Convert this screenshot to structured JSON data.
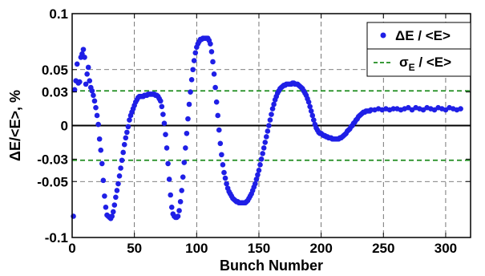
{
  "chart_data": {
    "type": "scatter",
    "title": "",
    "xlabel": "Bunch Number",
    "ylabel": "ΔE/<E>, %",
    "xlim": [
      0,
      320
    ],
    "ylim": [
      -0.1,
      0.1
    ],
    "x_ticks": [
      0,
      50,
      100,
      150,
      200,
      250,
      300
    ],
    "y_ticks": [
      0.1,
      0.05,
      0.03,
      0,
      -0.03,
      -0.05,
      -0.1
    ],
    "y_tick_labels": [
      "0.1",
      "0.05",
      "0.03",
      "0",
      "-0.03",
      "-0.05",
      "-0.1"
    ],
    "grid": true,
    "legend_position": "top-right",
    "colors": {
      "series": "#1f1fe6",
      "sigma": "#1e8c1e",
      "zero_line": "#000000"
    },
    "reference_lines": [
      {
        "name": "zero",
        "y": 0
      },
      {
        "name": "sigma_plus",
        "y": 0.031
      },
      {
        "name": "sigma_minus",
        "y": -0.031
      }
    ],
    "series": [
      {
        "name": "ΔE / <E>",
        "points": [
          [
            1,
            -0.081
          ],
          [
            2,
            0.032
          ],
          [
            3,
            0.04
          ],
          [
            4,
            0.055
          ],
          [
            5,
            0.038
          ],
          [
            6,
            0.039
          ],
          [
            7,
            0.061
          ],
          [
            8,
            0.064
          ],
          [
            9,
            0.068
          ],
          [
            10,
            0.061
          ],
          [
            11,
            0.037
          ],
          [
            12,
            0.046
          ],
          [
            13,
            0.052
          ],
          [
            14,
            0.04
          ],
          [
            15,
            0.034
          ],
          [
            16,
            0.031
          ],
          [
            17,
            0.027
          ],
          [
            18,
            0.022
          ],
          [
            19,
            0.016
          ],
          [
            20,
            0.009
          ],
          [
            21,
            0.001
          ],
          [
            22,
            -0.012
          ],
          [
            23,
            -0.022
          ],
          [
            24,
            -0.034
          ],
          [
            25,
            -0.049
          ],
          [
            26,
            -0.063
          ],
          [
            27,
            -0.073
          ],
          [
            28,
            -0.08
          ],
          [
            29,
            -0.081
          ],
          [
            30,
            -0.082
          ],
          [
            31,
            -0.083
          ],
          [
            32,
            -0.081
          ],
          [
            33,
            -0.077
          ],
          [
            34,
            -0.071
          ],
          [
            35,
            -0.064
          ],
          [
            36,
            -0.058
          ],
          [
            37,
            -0.052
          ],
          [
            38,
            -0.045
          ],
          [
            39,
            -0.038
          ],
          [
            40,
            -0.031
          ],
          [
            41,
            -0.024
          ],
          [
            42,
            -0.017
          ],
          [
            43,
            -0.011
          ],
          [
            44,
            -0.006
          ],
          [
            45,
            -0.001
          ],
          [
            46,
            0.005
          ],
          [
            47,
            0.009
          ],
          [
            48,
            0.012
          ],
          [
            49,
            0.015
          ],
          [
            50,
            0.018
          ],
          [
            51,
            0.021
          ],
          [
            52,
            0.023
          ],
          [
            53,
            0.025
          ],
          [
            54,
            0.026
          ],
          [
            55,
            0.026
          ],
          [
            56,
            0.026
          ],
          [
            57,
            0.026
          ],
          [
            58,
            0.027
          ],
          [
            59,
            0.027
          ],
          [
            60,
            0.027
          ],
          [
            61,
            0.028
          ],
          [
            62,
            0.028
          ],
          [
            63,
            0.028
          ],
          [
            64,
            0.028
          ],
          [
            65,
            0.028
          ],
          [
            66,
            0.028
          ],
          [
            67,
            0.027
          ],
          [
            68,
            0.027
          ],
          [
            69,
            0.026
          ],
          [
            70,
            0.024
          ],
          [
            71,
            0.022
          ],
          [
            72,
            0.017
          ],
          [
            73,
            0.01
          ],
          [
            74,
            0.002
          ],
          [
            75,
            -0.008
          ],
          [
            76,
            -0.02
          ],
          [
            77,
            -0.034
          ],
          [
            78,
            -0.048
          ],
          [
            79,
            -0.062
          ],
          [
            80,
            -0.073
          ],
          [
            81,
            -0.079
          ],
          [
            82,
            -0.081
          ],
          [
            83,
            -0.082
          ],
          [
            84,
            -0.082
          ],
          [
            85,
            -0.081
          ],
          [
            86,
            -0.076
          ],
          [
            87,
            -0.068
          ],
          [
            88,
            -0.058
          ],
          [
            89,
            -0.046
          ],
          [
            90,
            -0.033
          ],
          [
            91,
            -0.02
          ],
          [
            92,
            -0.007
          ],
          [
            93,
            0.006
          ],
          [
            94,
            0.019
          ],
          [
            95,
            0.03
          ],
          [
            96,
            0.041
          ],
          [
            97,
            0.05
          ],
          [
            98,
            0.058
          ],
          [
            99,
            0.065
          ],
          [
            100,
            0.07
          ],
          [
            101,
            0.073
          ],
          [
            102,
            0.075
          ],
          [
            103,
            0.077
          ],
          [
            104,
            0.077
          ],
          [
            105,
            0.078
          ],
          [
            106,
            0.078
          ],
          [
            107,
            0.078
          ],
          [
            108,
            0.078
          ],
          [
            109,
            0.078
          ],
          [
            110,
            0.076
          ],
          [
            111,
            0.073
          ],
          [
            112,
            0.066
          ],
          [
            113,
            0.057
          ],
          [
            114,
            0.046
          ],
          [
            115,
            0.034
          ],
          [
            116,
            0.021
          ],
          [
            117,
            0.009
          ],
          [
            118,
            -0.004
          ],
          [
            119,
            -0.016
          ],
          [
            120,
            -0.026
          ],
          [
            121,
            -0.035
          ],
          [
            122,
            -0.042
          ],
          [
            123,
            -0.047
          ],
          [
            124,
            -0.052
          ],
          [
            125,
            -0.056
          ],
          [
            126,
            -0.059
          ],
          [
            127,
            -0.061
          ],
          [
            128,
            -0.063
          ],
          [
            129,
            -0.065
          ],
          [
            130,
            -0.066
          ],
          [
            131,
            -0.067
          ],
          [
            132,
            -0.068
          ],
          [
            133,
            -0.068
          ],
          [
            134,
            -0.069
          ],
          [
            135,
            -0.069
          ],
          [
            136,
            -0.069
          ],
          [
            137,
            -0.069
          ],
          [
            138,
            -0.069
          ],
          [
            139,
            -0.069
          ],
          [
            140,
            -0.068
          ],
          [
            141,
            -0.067
          ],
          [
            142,
            -0.065
          ],
          [
            143,
            -0.063
          ],
          [
            144,
            -0.061
          ],
          [
            145,
            -0.058
          ],
          [
            146,
            -0.055
          ],
          [
            147,
            -0.052
          ],
          [
            148,
            -0.048
          ],
          [
            149,
            -0.044
          ],
          [
            150,
            -0.04
          ],
          [
            151,
            -0.035
          ],
          [
            152,
            -0.03
          ],
          [
            153,
            -0.025
          ],
          [
            154,
            -0.02
          ],
          [
            155,
            -0.015
          ],
          [
            156,
            -0.01
          ],
          [
            157,
            -0.005
          ],
          [
            158,
            0.0
          ],
          [
            159,
            0.005
          ],
          [
            160,
            0.01
          ],
          [
            161,
            0.015
          ],
          [
            162,
            0.019
          ],
          [
            163,
            0.023
          ],
          [
            164,
            0.026
          ],
          [
            165,
            0.029
          ],
          [
            166,
            0.031
          ],
          [
            167,
            0.033
          ],
          [
            168,
            0.034
          ],
          [
            169,
            0.035
          ],
          [
            170,
            0.036
          ],
          [
            171,
            0.036
          ],
          [
            172,
            0.037
          ],
          [
            173,
            0.037
          ],
          [
            174,
            0.037
          ],
          [
            175,
            0.037
          ],
          [
            176,
            0.037
          ],
          [
            177,
            0.038
          ],
          [
            178,
            0.038
          ],
          [
            179,
            0.037
          ],
          [
            180,
            0.037
          ],
          [
            181,
            0.037
          ],
          [
            182,
            0.036
          ],
          [
            183,
            0.035
          ],
          [
            184,
            0.034
          ],
          [
            185,
            0.033
          ],
          [
            186,
            0.031
          ],
          [
            187,
            0.029
          ],
          [
            188,
            0.027
          ],
          [
            189,
            0.024
          ],
          [
            190,
            0.021
          ],
          [
            191,
            0.017
          ],
          [
            192,
            0.013
          ],
          [
            193,
            0.009
          ],
          [
            194,
            0.005
          ],
          [
            195,
            0.001
          ],
          [
            196,
            -0.002
          ],
          [
            197,
            -0.004
          ],
          [
            198,
            -0.006
          ],
          [
            199,
            -0.007
          ],
          [
            200,
            -0.007
          ],
          [
            201,
            -0.008
          ],
          [
            202,
            -0.009
          ],
          [
            203,
            -0.009
          ],
          [
            204,
            -0.01
          ],
          [
            205,
            -0.01
          ],
          [
            206,
            -0.011
          ],
          [
            207,
            -0.011
          ],
          [
            208,
            -0.011
          ],
          [
            209,
            -0.012
          ],
          [
            210,
            -0.012
          ],
          [
            211,
            -0.012
          ],
          [
            212,
            -0.012
          ],
          [
            213,
            -0.012
          ],
          [
            214,
            -0.012
          ],
          [
            215,
            -0.011
          ],
          [
            216,
            -0.011
          ],
          [
            217,
            -0.01
          ],
          [
            218,
            -0.009
          ],
          [
            219,
            -0.008
          ],
          [
            220,
            -0.007
          ],
          [
            221,
            -0.005
          ],
          [
            222,
            -0.004
          ],
          [
            223,
            -0.003
          ],
          [
            224,
            -0.001
          ],
          [
            225,
            0.0
          ],
          [
            226,
            0.002
          ],
          [
            227,
            0.003
          ],
          [
            228,
            0.005
          ],
          [
            229,
            0.006
          ],
          [
            230,
            0.008
          ],
          [
            231,
            0.009
          ],
          [
            232,
            0.01
          ],
          [
            233,
            0.011
          ],
          [
            234,
            0.012
          ],
          [
            235,
            0.012
          ],
          [
            236,
            0.013
          ],
          [
            237,
            0.013
          ],
          [
            238,
            0.013
          ],
          [
            239,
            0.013
          ],
          [
            240,
            0.014
          ],
          [
            243,
            0.014
          ],
          [
            246,
            0.015
          ],
          [
            249,
            0.014
          ],
          [
            252,
            0.015
          ],
          [
            255,
            0.014
          ],
          [
            258,
            0.015
          ],
          [
            261,
            0.015
          ],
          [
            264,
            0.014
          ],
          [
            267,
            0.015
          ],
          [
            270,
            0.016
          ],
          [
            273,
            0.014
          ],
          [
            276,
            0.016
          ],
          [
            279,
            0.015
          ],
          [
            282,
            0.014
          ],
          [
            285,
            0.016
          ],
          [
            288,
            0.015
          ],
          [
            291,
            0.014
          ],
          [
            294,
            0.016
          ],
          [
            297,
            0.015
          ],
          [
            300,
            0.014
          ],
          [
            303,
            0.016
          ],
          [
            306,
            0.015
          ],
          [
            309,
            0.014
          ],
          [
            312,
            0.015
          ]
        ]
      },
      {
        "name": "σE / <E>",
        "values": [
          0.031,
          -0.031
        ]
      }
    ]
  }
}
